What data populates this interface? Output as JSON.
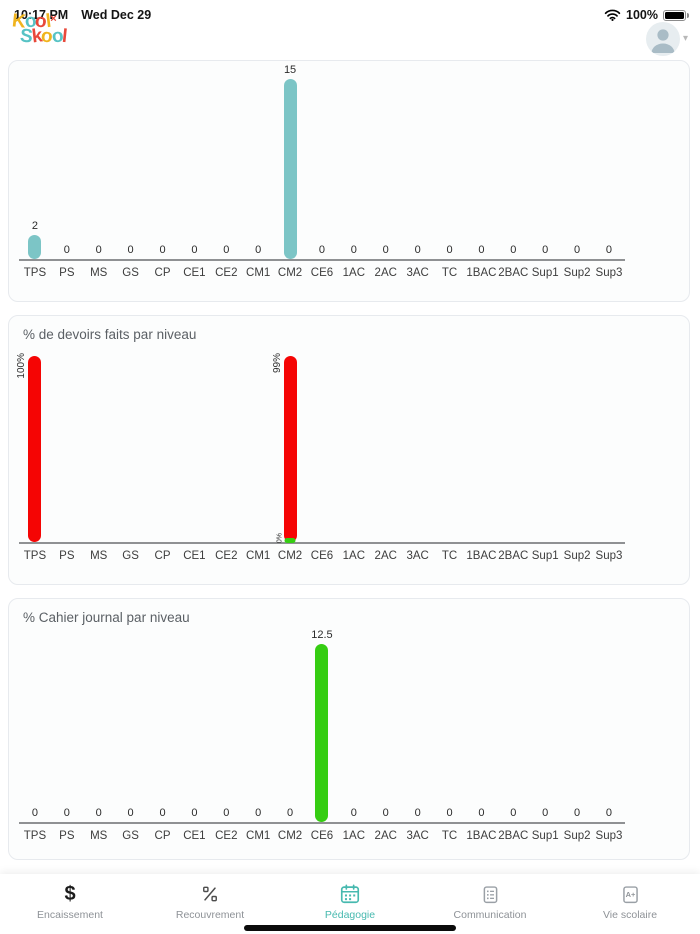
{
  "status_bar": {
    "time": "10:17 PM",
    "date": "Wed Dec 29",
    "battery": "100%"
  },
  "header": {
    "logo_line1": "Kool",
    "logo_line2": "Skool",
    "logo_mark": "×",
    "logo_colors": [
      "#e8483a",
      "#f0b41e",
      "#57c3c5"
    ]
  },
  "chart_data": [
    {
      "type": "bar",
      "title": "",
      "bar_color": "#7cc5c6",
      "categories": [
        "TPS",
        "PS",
        "MS",
        "GS",
        "CP",
        "CE1",
        "CE2",
        "CM1",
        "CM2",
        "CE6",
        "1AC",
        "2AC",
        "3AC",
        "TC",
        "1BAC",
        "2BAC",
        "Sup1",
        "Sup2",
        "Sup3"
      ],
      "values": [
        2,
        0,
        0,
        0,
        0,
        0,
        0,
        0,
        15,
        0,
        0,
        0,
        0,
        0,
        0,
        0,
        0,
        0,
        0
      ],
      "value_labels": [
        "2",
        "0",
        "0",
        "0",
        "0",
        "0",
        "0",
        "0",
        "15",
        "0",
        "0",
        "0",
        "0",
        "0",
        "0",
        "0",
        "0",
        "0",
        "0"
      ],
      "ylim": [
        0,
        15
      ],
      "label_orientation": "horizontal",
      "grid": false,
      "legend": "none"
    },
    {
      "type": "bar",
      "title": "% de devoirs faits par niveau",
      "bar_color": "#f50504",
      "categories": [
        "TPS",
        "PS",
        "MS",
        "GS",
        "CP",
        "CE1",
        "CE2",
        "CM1",
        "CM2",
        "CE6",
        "1AC",
        "2AC",
        "3AC",
        "TC",
        "1BAC",
        "2BAC",
        "Sup1",
        "Sup2",
        "Sup3"
      ],
      "values": [
        100,
        0,
        0,
        0,
        0,
        0,
        0,
        0,
        99,
        0,
        0,
        0,
        0,
        0,
        0,
        0,
        0,
        0,
        0
      ],
      "value_labels": [
        "100%",
        "",
        "",
        "",
        "",
        "",
        "",
        "",
        "99%",
        "",
        "",
        "",
        "",
        "",
        "",
        "",
        "",
        "",
        ""
      ],
      "ylim": [
        0,
        100
      ],
      "label_orientation": "vertical",
      "secondary_marker": {
        "category": "CM2",
        "label": "0%",
        "color": "#35cd12"
      },
      "grid": false,
      "legend": "none"
    },
    {
      "type": "bar",
      "title": "% Cahier journal par niveau",
      "bar_color": "#35cd12",
      "categories": [
        "TPS",
        "PS",
        "MS",
        "GS",
        "CP",
        "CE1",
        "CE2",
        "CM1",
        "CM2",
        "CE6",
        "1AC",
        "2AC",
        "3AC",
        "TC",
        "1BAC",
        "2BAC",
        "Sup1",
        "Sup2",
        "Sup3"
      ],
      "values": [
        0,
        0,
        0,
        0,
        0,
        0,
        0,
        0,
        0,
        12.5,
        0,
        0,
        0,
        0,
        0,
        0,
        0,
        0,
        0
      ],
      "value_labels": [
        "0",
        "0",
        "0",
        "0",
        "0",
        "0",
        "0",
        "0",
        "0",
        "12.5",
        "0",
        "0",
        "0",
        "0",
        "0",
        "0",
        "0",
        "0",
        "0"
      ],
      "ylim": [
        0,
        12.5
      ],
      "label_orientation": "horizontal",
      "grid": false,
      "legend": "none"
    }
  ],
  "tab_bar": {
    "active_color": "#47b9af",
    "items": [
      {
        "key": "encaissement",
        "label": "Encaissement",
        "icon": "dollar-icon",
        "active": false
      },
      {
        "key": "recouvrement",
        "label": "Recouvrement",
        "icon": "percent-icon",
        "active": false
      },
      {
        "key": "pedagogie",
        "label": "Pédagogie",
        "icon": "calendar-icon",
        "active": true
      },
      {
        "key": "communication",
        "label": "Communication",
        "icon": "chat-list-icon",
        "active": false
      },
      {
        "key": "vie-scolaire",
        "label": "Vie scolaire",
        "icon": "a-plus-doc-icon",
        "active": false
      }
    ]
  }
}
